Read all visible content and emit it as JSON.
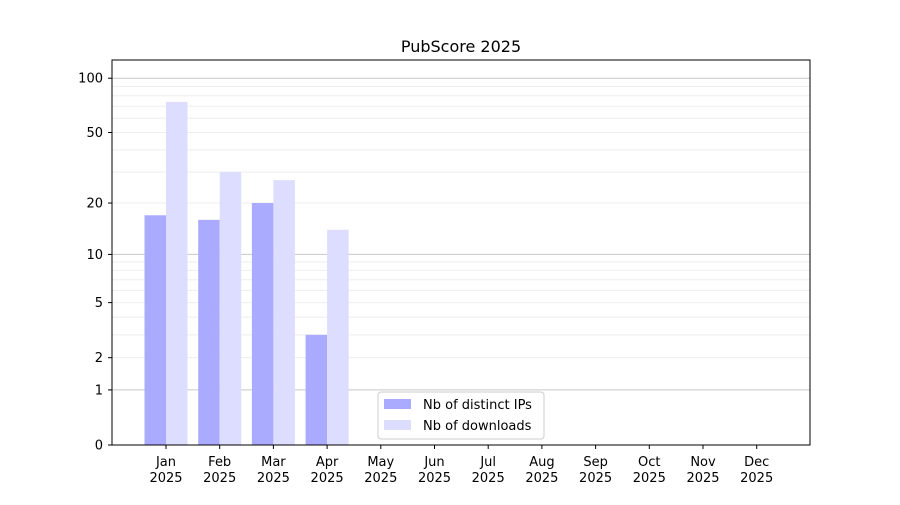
{
  "chart_data": {
    "type": "bar",
    "title": "PubScore 2025",
    "xlabel": "",
    "ylabel": "",
    "yscale": "log10(1+y)",
    "ylim": [
      0,
      120
    ],
    "yticks": [
      0,
      1,
      2,
      5,
      10,
      20,
      50,
      100
    ],
    "grid": true,
    "legend_position": "lower-center",
    "categories": [
      [
        "Jan",
        "2025"
      ],
      [
        "Feb",
        "2025"
      ],
      [
        "Mar",
        "2025"
      ],
      [
        "Apr",
        "2025"
      ],
      [
        "May",
        "2025"
      ],
      [
        "Jun",
        "2025"
      ],
      [
        "Jul",
        "2025"
      ],
      [
        "Aug",
        "2025"
      ],
      [
        "Sep",
        "2025"
      ],
      [
        "Oct",
        "2025"
      ],
      [
        "Nov",
        "2025"
      ],
      [
        "Dec",
        "2025"
      ]
    ],
    "series": [
      {
        "name": "Nb of distinct IPs",
        "color": "#aaaaff",
        "values": [
          17,
          16,
          20,
          3,
          0,
          0,
          0,
          0,
          0,
          0,
          0,
          0
        ]
      },
      {
        "name": "Nb of downloads",
        "color": "#ddddff",
        "values": [
          74,
          30,
          27,
          14,
          0,
          0,
          0,
          0,
          0,
          0,
          0,
          0
        ]
      }
    ]
  }
}
